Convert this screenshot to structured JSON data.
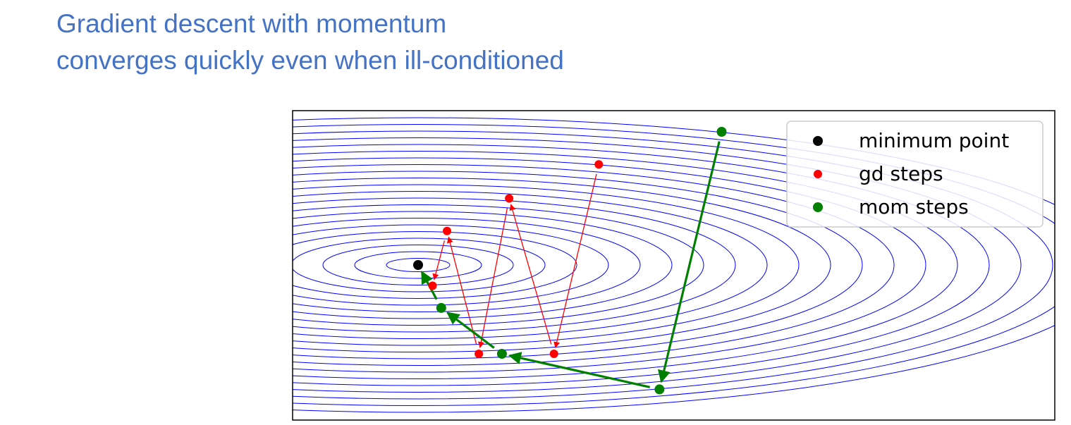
{
  "title_lines": [
    "Gradient descent with momentum",
    "converges quickly even when ill-conditioned"
  ],
  "colors": {
    "title": "#4472c4",
    "contour": "#0000ff",
    "minimum": "#000000",
    "gd": "#ff0000",
    "mom": "#008000"
  },
  "chart_data": {
    "type": "scatter",
    "title": "",
    "xlabel": "",
    "ylabel": "",
    "axes_visible": false,
    "grid": false,
    "legend_position": "top-right",
    "xlim": [
      -1.0,
      4.0
    ],
    "ylim": [
      -1.0,
      1.0
    ],
    "contours": {
      "function": "x^2 + k*y^2 (ill-conditioned quadratic)",
      "levels": 22,
      "color": "#0000ff"
    },
    "series": [
      {
        "name": "minimum point",
        "color": "#000000",
        "marker_size": 7,
        "points": [
          [
            0.0,
            0.0
          ]
        ]
      },
      {
        "name": "gd steps",
        "color": "#ff0000",
        "marker_size": 6,
        "connect": "arrows",
        "points": [
          [
            1.25,
            0.68
          ],
          [
            0.94,
            -0.6
          ],
          [
            0.63,
            0.45
          ],
          [
            0.42,
            -0.6
          ],
          [
            0.2,
            0.23
          ],
          [
            0.1,
            -0.14
          ]
        ]
      },
      {
        "name": "mom steps",
        "color": "#008000",
        "marker_size": 7,
        "connect": "arrows",
        "points": [
          [
            2.1,
            0.9
          ],
          [
            1.67,
            -0.84
          ],
          [
            0.58,
            -0.6
          ],
          [
            0.16,
            -0.29
          ],
          [
            0.0,
            0.0
          ]
        ]
      }
    ]
  }
}
